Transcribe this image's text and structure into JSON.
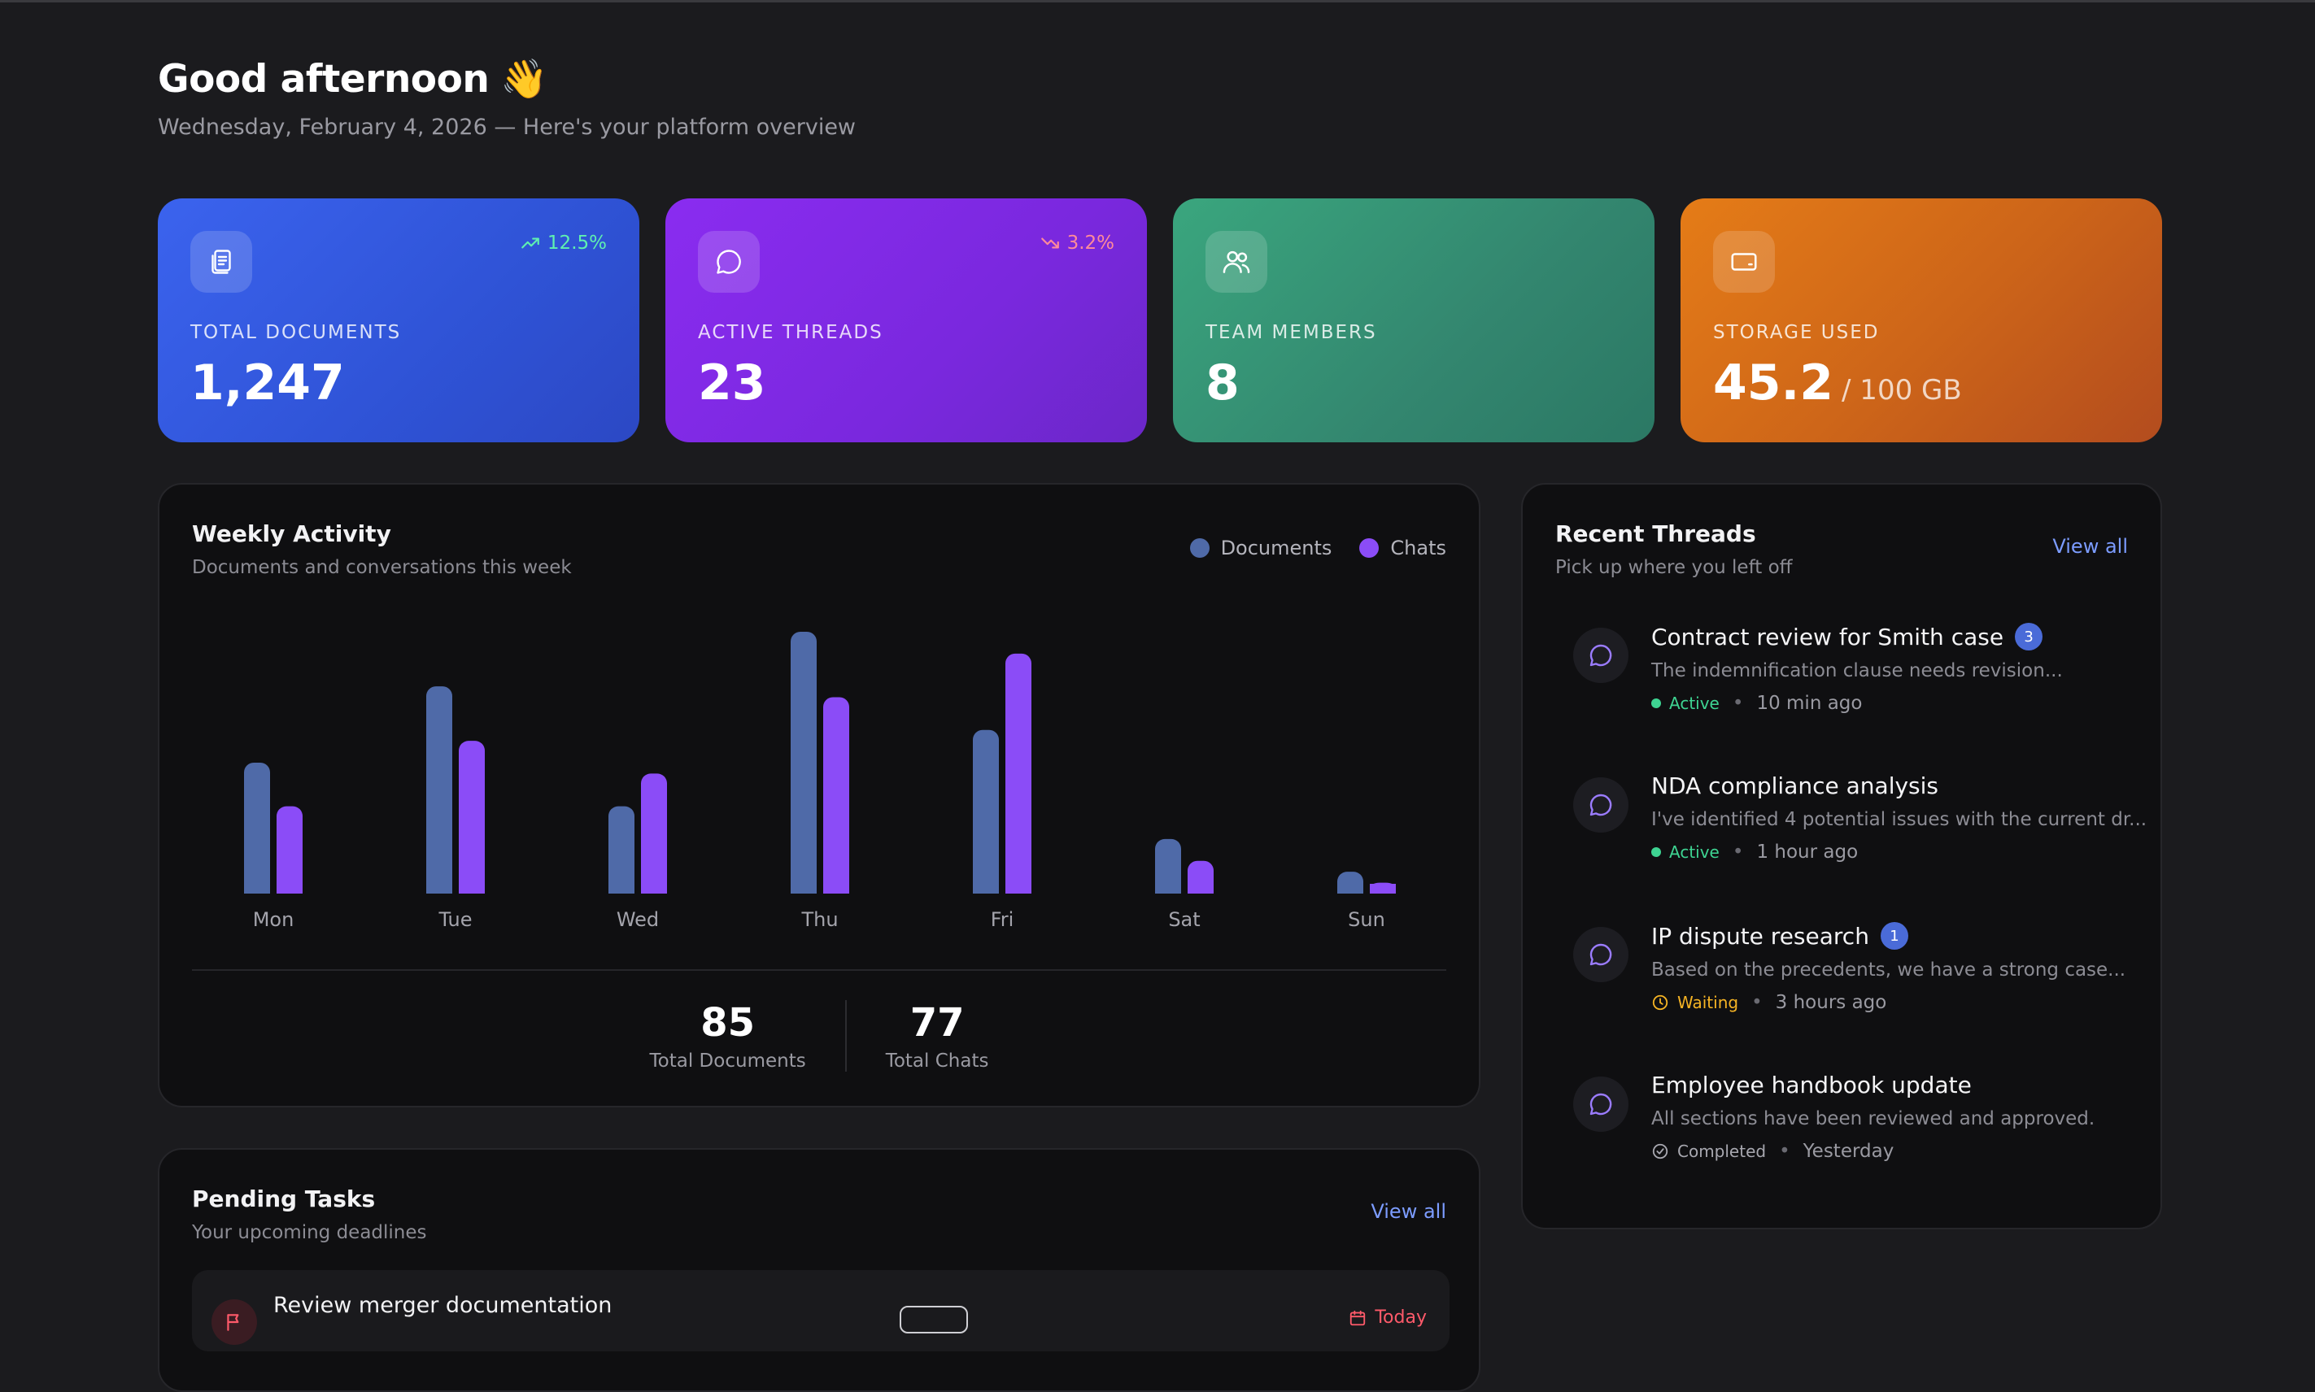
{
  "header": {
    "greeting": "Good afternoon",
    "wave_emoji": "👋",
    "subtitle": "Wednesday, February 4, 2026 — Here's your platform overview"
  },
  "stats": [
    {
      "label": "TOTAL DOCUMENTS",
      "value": "1,247",
      "unit": "",
      "trend": "12.5%",
      "trend_dir": "up",
      "icon": "documents-icon",
      "color": "#3b63ee"
    },
    {
      "label": "ACTIVE THREADS",
      "value": "23",
      "unit": "",
      "trend": "3.2%",
      "trend_dir": "down",
      "icon": "chat-bubble-icon",
      "color": "#8a2cf0"
    },
    {
      "label": "TEAM MEMBERS",
      "value": "8",
      "unit": "",
      "trend": "",
      "trend_dir": "",
      "icon": "users-icon",
      "color": "#3aa67e"
    },
    {
      "label": "STORAGE USED",
      "value": "45.2",
      "unit": "/ 100 GB",
      "trend": "",
      "trend_dir": "",
      "icon": "hard-drive-icon",
      "color": "#e57c17"
    }
  ],
  "activity": {
    "title": "Weekly Activity",
    "subtitle": "Documents and conversations this week",
    "legend": {
      "documents": "Documents",
      "chats": "Chats"
    },
    "total_documents": "85",
    "total_documents_label": "Total Documents",
    "total_chats": "77",
    "total_chats_label": "Total Chats"
  },
  "chart_data": {
    "type": "bar",
    "categories": [
      "Mon",
      "Tue",
      "Wed",
      "Thu",
      "Fri",
      "Sat",
      "Sun"
    ],
    "series": [
      {
        "name": "Documents",
        "values": [
          12,
          19,
          8,
          24,
          15,
          5,
          2
        ],
        "color": "#4f6aa8"
      },
      {
        "name": "Chats",
        "values": [
          8,
          14,
          11,
          18,
          22,
          3,
          1
        ],
        "color": "#8b4cf7"
      }
    ],
    "ylim": [
      0,
      24
    ],
    "grid": false,
    "legend": "top-right"
  },
  "threads": {
    "title": "Recent Threads",
    "subtitle": "Pick up where you left off",
    "view_all": "View all",
    "items": [
      {
        "title": "Contract review for Smith case",
        "badge": "3",
        "preview": "The indemnification clause needs revision...",
        "status": "Active",
        "status_type": "active",
        "time": "10 min ago"
      },
      {
        "title": "NDA compliance analysis",
        "badge": "",
        "preview": "I've identified 4 potential issues with the current dr...",
        "status": "Active",
        "status_type": "active",
        "time": "1 hour ago"
      },
      {
        "title": "IP dispute research",
        "badge": "1",
        "preview": "Based on the precedents, we have a strong case...",
        "status": "Waiting",
        "status_type": "waiting",
        "time": "3 hours ago"
      },
      {
        "title": "Employee handbook update",
        "badge": "",
        "preview": "All sections have been reviewed and approved.",
        "status": "Completed",
        "status_type": "completed",
        "time": "Yesterday"
      }
    ]
  },
  "tasks": {
    "title": "Pending Tasks",
    "subtitle": "Your upcoming deadlines",
    "view_all": "View all",
    "items": [
      {
        "title": "Review merger documentation",
        "due": "Today"
      }
    ]
  }
}
